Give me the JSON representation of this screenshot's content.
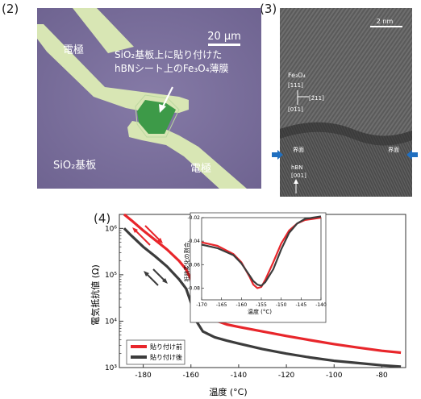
{
  "panels": {
    "micro_label": "(2)",
    "tem_label": "(3)",
    "chart_label": "(4)"
  },
  "micrograph": {
    "electrode_top": "電極",
    "electrode_bottom": "電極",
    "scalebar": "20 μm",
    "caption_line1": "SiO₂基板上に貼り付けた",
    "caption_line2": "hBNシート上のFe₃O₄薄膜",
    "substrate": "SiO₂基板"
  },
  "tem": {
    "scalebar": "2 nm",
    "fe3o4_label": "Fe₃O₄",
    "dir_111": "[111]",
    "dir_211": "[2̄11]",
    "dir_011": "[01̄1]",
    "interface_left": "界面",
    "interface_right": "界面",
    "hbn_label": "hBN",
    "hbn_dir": "[001]"
  },
  "colors": {
    "substrate": "#7a6f9c",
    "electrode": "#d8e6b4",
    "film": "#3d9a48",
    "before": "#e8262b",
    "after": "#3c3c3c",
    "arrow_blue": "#1f6fc0"
  },
  "chart_data": {
    "type": "line",
    "xlabel": "温度 (°C)",
    "ylabel": "電気抵抗値 (Ω)",
    "yscale": "log",
    "xlim": [
      -190,
      -70
    ],
    "ylim": [
      1000,
      2000000
    ],
    "xticks": [
      "-180",
      "-160",
      "-140",
      "-120",
      "-100",
      "-80"
    ],
    "yticks": [
      "10³",
      "10⁴",
      "10⁵",
      "10⁶"
    ],
    "series": [
      {
        "name": "貼り付け前",
        "color": "#e8262b",
        "x": [
          -188,
          -185,
          -180,
          -175,
          -170,
          -165,
          -162,
          -160,
          -158,
          -155,
          -150,
          -145,
          -140,
          -130,
          -120,
          -110,
          -100,
          -90,
          -80,
          -72
        ],
        "y": [
          2000000,
          1500000,
          900000,
          560000,
          350000,
          200000,
          130000,
          80000,
          35000,
          16000,
          10500,
          8500,
          7500,
          6000,
          4800,
          3900,
          3200,
          2700,
          2300,
          2100
        ]
      },
      {
        "name": "貼り付け後",
        "color": "#3c3c3c",
        "x": [
          -188,
          -185,
          -180,
          -175,
          -170,
          -165,
          -162,
          -160,
          -158,
          -155,
          -150,
          -145,
          -140,
          -130,
          -120,
          -110,
          -100,
          -90,
          -80,
          -72
        ],
        "y": [
          1000000,
          700000,
          400000,
          250000,
          150000,
          80000,
          50000,
          25000,
          10500,
          6000,
          4500,
          3800,
          3300,
          2500,
          2000,
          1650,
          1400,
          1250,
          1120,
          1050
        ]
      }
    ],
    "legend_position": "bottom-left",
    "inset": {
      "type": "line",
      "xlabel": "温度 (°C)",
      "ylabel": "抵抗変化の割合",
      "xlim": [
        -170,
        -140
      ],
      "ylim": [
        -0.09,
        -0.02
      ],
      "xticks": [
        "-170",
        "-165",
        "-160",
        "-155",
        "-150",
        "-145",
        "-140"
      ],
      "yticks": [
        "-0.02",
        "-0.04",
        "-0.06",
        "-0.08"
      ],
      "series": [
        {
          "name": "貼り付け前",
          "color": "#e8262b",
          "x": [
            -170,
            -166,
            -162,
            -160,
            -158,
            -157,
            -156,
            -155,
            -154,
            -152,
            -150,
            -148,
            -146,
            -144,
            -142,
            -140
          ],
          "y": [
            -0.041,
            -0.044,
            -0.051,
            -0.058,
            -0.07,
            -0.077,
            -0.08,
            -0.079,
            -0.073,
            -0.058,
            -0.042,
            -0.031,
            -0.025,
            -0.022,
            -0.021,
            -0.02
          ]
        },
        {
          "name": "貼り付け後",
          "color": "#3c3c3c",
          "x": [
            -170,
            -166,
            -162,
            -160,
            -158,
            -157,
            -156,
            -155,
            -154,
            -152,
            -150,
            -148,
            -146,
            -144,
            -142,
            -140
          ],
          "y": [
            -0.043,
            -0.046,
            -0.052,
            -0.059,
            -0.069,
            -0.074,
            -0.077,
            -0.078,
            -0.075,
            -0.064,
            -0.047,
            -0.033,
            -0.025,
            -0.021,
            -0.02,
            -0.019
          ]
        }
      ]
    }
  }
}
